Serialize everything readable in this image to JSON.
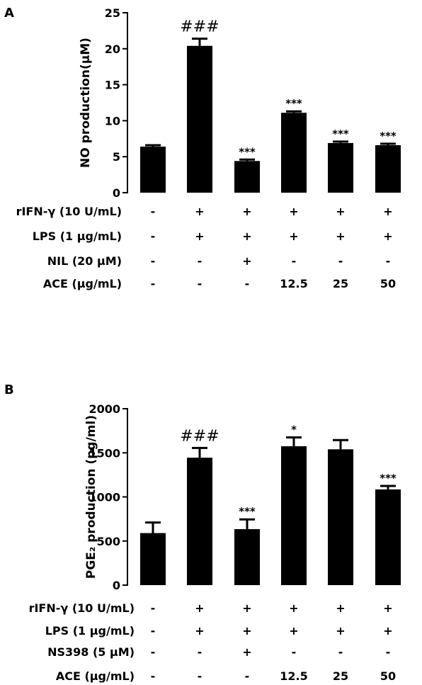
{
  "chart_data": [
    {
      "type": "bar",
      "panel": "A",
      "ylabel": "NO production(μM)",
      "ylim": [
        0,
        25
      ],
      "yticks": [
        0,
        5,
        10,
        15,
        20,
        25
      ],
      "values": [
        6.4,
        20.4,
        4.4,
        11.1,
        6.9,
        6.6
      ],
      "errors": [
        0.2,
        1.0,
        0.2,
        0.2,
        0.2,
        0.2
      ],
      "significance": [
        "",
        "###",
        "***",
        "***",
        "***",
        "***"
      ],
      "conditions": [
        {
          "label": "rIFN-γ (10 U/mL)",
          "values": [
            "-",
            "+",
            "+",
            "+",
            "+",
            "+"
          ]
        },
        {
          "label": "LPS (1 μg/mL)",
          "values": [
            "-",
            "+",
            "+",
            "+",
            "+",
            "+"
          ]
        },
        {
          "label": "NIL (20 μM)",
          "values": [
            "-",
            "-",
            "+",
            "-",
            "-",
            "-"
          ]
        },
        {
          "label": "ACE (μg/mL)",
          "values": [
            "-",
            "-",
            "-",
            "12.5",
            "25",
            "50"
          ]
        }
      ]
    },
    {
      "type": "bar",
      "panel": "B",
      "ylabel": "PGE₂ production (pg/ml)",
      "ylim": [
        0,
        2000
      ],
      "yticks": [
        0,
        500,
        1000,
        1500,
        2000
      ],
      "values": [
        590,
        1445,
        635,
        1575,
        1540,
        1085
      ],
      "errors": [
        120,
        110,
        110,
        100,
        105,
        40
      ],
      "significance": [
        "",
        "###",
        "***",
        "*",
        "",
        "***"
      ],
      "conditions": [
        {
          "label": "rIFN-γ (10 U/mL)",
          "values": [
            "-",
            "+",
            "+",
            "+",
            "+",
            "+"
          ]
        },
        {
          "label": "LPS (1 μg/mL)",
          "values": [
            "-",
            "+",
            "+",
            "+",
            "+",
            "+"
          ]
        },
        {
          "label": "NS398 (5 μM)",
          "values": [
            "-",
            "-",
            "+",
            "-",
            "-",
            "-"
          ]
        },
        {
          "label": "ACE (μg/mL)",
          "values": [
            "-",
            "-",
            "-",
            "12.5",
            "25",
            "50"
          ]
        }
      ]
    }
  ]
}
